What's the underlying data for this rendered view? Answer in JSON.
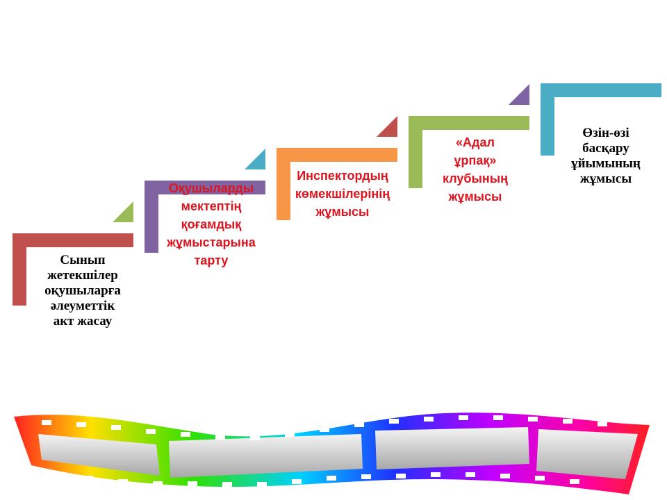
{
  "steps": [
    {
      "lines": [
        "Сынып",
        "жетекшілер",
        "оқушыларға",
        "әлеуметтік",
        "акт жасау"
      ]
    },
    {
      "lines": [
        "Оқушыларды",
        "мектептің",
        "қоғамдық",
        "жұмыстарына",
        "тарту"
      ]
    },
    {
      "lines": [
        "Инспектордың",
        "көмекшілерінің",
        "жұмысы"
      ]
    },
    {
      "lines": [
        "«Адал",
        "ұрпақ»",
        "клубының",
        "жұмысы"
      ]
    },
    {
      "lines": [
        "Өзін-өзі",
        "басқару",
        "ұйымының",
        "жұмысы"
      ]
    }
  ]
}
